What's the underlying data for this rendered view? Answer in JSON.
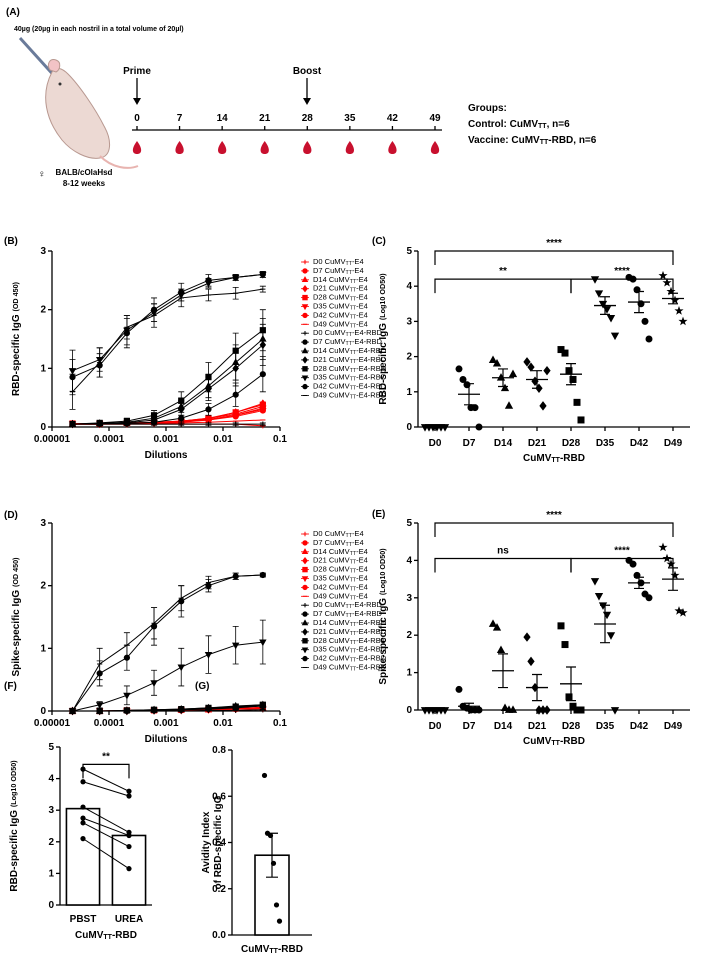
{
  "schematic": {
    "panel": "(A)",
    "dose": "40µg (20µg in each nostril in a total volume of 20µl)",
    "prime": "Prime",
    "boost": "Boost",
    "days": [
      0,
      7,
      14,
      21,
      28,
      35,
      42,
      49
    ],
    "groups_title": "Groups:",
    "groups": [
      "Control: CuMVTT, n=6",
      "Vaccine: CuMVTT-RBD, n=6"
    ],
    "sex": "♀",
    "strain": "BALB/cOlaHsd",
    "age": "8-12 weeks"
  },
  "chart_data": [
    {
      "type": "line",
      "panel": "(B)",
      "ylabel": "RBD-specific IgG (OD 450)",
      "xlabel": "Dilutions",
      "xscale": "log",
      "xlim": [
        1e-05,
        0.1
      ],
      "xticks": [
        1e-05,
        0.0001,
        0.001,
        0.01,
        0.1
      ],
      "ylim": [
        0,
        3
      ],
      "yticks": [
        0,
        1,
        2,
        3
      ],
      "legend": "right",
      "x": [
        2.29e-05,
        6.86e-05,
        0.000206,
        0.000617,
        0.00185,
        0.00556,
        0.0167,
        0.05
      ],
      "series": [
        {
          "name": "D0 CuMVTT-E4",
          "color": "#ff0000",
          "marker": "plus",
          "values": [
            0.05,
            0.05,
            0.05,
            0.05,
            0.05,
            0.05,
            0.05,
            0.02
          ]
        },
        {
          "name": "D7 CuMVTT-E4",
          "color": "#ff0000",
          "marker": "circle",
          "values": [
            0.05,
            0.05,
            0.06,
            0.07,
            0.09,
            0.12,
            0.2,
            0.3
          ]
        },
        {
          "name": "D14 CuMVTT-E4",
          "color": "#ff0000",
          "marker": "triangle",
          "values": [
            0.05,
            0.06,
            0.06,
            0.08,
            0.1,
            0.15,
            0.22,
            0.35
          ]
        },
        {
          "name": "D21 CuMVTT-E4",
          "color": "#ff0000",
          "marker": "diamond",
          "values": [
            0.05,
            0.05,
            0.06,
            0.07,
            0.1,
            0.14,
            0.25,
            0.4
          ]
        },
        {
          "name": "D28 CuMVTT-E4",
          "color": "#ff0000",
          "marker": "square",
          "values": [
            0.06,
            0.06,
            0.07,
            0.08,
            0.1,
            0.15,
            0.25,
            0.38
          ]
        },
        {
          "name": "D35 CuMVTT-E4",
          "color": "#ff0000",
          "marker": "triangle-down",
          "values": [
            0.05,
            0.06,
            0.06,
            0.07,
            0.09,
            0.13,
            0.2,
            0.32
          ]
        },
        {
          "name": "D42 CuMVTT-E4",
          "color": "#ff0000",
          "marker": "circle",
          "values": [
            0.05,
            0.05,
            0.06,
            0.07,
            0.08,
            0.12,
            0.18,
            0.28
          ]
        },
        {
          "name": "D49 CuMVTT-E4",
          "color": "#ff0000",
          "marker": "dash",
          "values": [
            0.05,
            0.05,
            0.05,
            0.06,
            0.07,
            0.08,
            0.1,
            0.12
          ]
        },
        {
          "name": "D0 CuMVTT-E4-RBD",
          "color": "#000000",
          "marker": "plus",
          "values": [
            0.05,
            0.05,
            0.05,
            0.05,
            0.05,
            0.05,
            0.05,
            0.05
          ],
          "errors": [
            0.02,
            0.02,
            0.02,
            0.02,
            0.02,
            0.02,
            0.02,
            0.02
          ]
        },
        {
          "name": "D7 CuMVTT-E4-RBD",
          "color": "#000000",
          "marker": "circle",
          "values": [
            0.05,
            0.05,
            0.06,
            0.08,
            0.15,
            0.3,
            0.55,
            0.9
          ],
          "errors": [
            0.02,
            0.02,
            0.03,
            0.03,
            0.05,
            0.1,
            0.2,
            0.3
          ]
        },
        {
          "name": "D14 CuMVTT-E4-RBD",
          "color": "#000000",
          "marker": "triangle",
          "values": [
            0.05,
            0.06,
            0.08,
            0.15,
            0.35,
            0.7,
            1.1,
            1.5
          ],
          "errors": [
            0.02,
            0.03,
            0.03,
            0.05,
            0.1,
            0.2,
            0.3,
            0.35
          ]
        },
        {
          "name": "D21 CuMVTT-E4-RBD",
          "color": "#000000",
          "marker": "diamond",
          "values": [
            0.05,
            0.06,
            0.07,
            0.12,
            0.3,
            0.65,
            1.0,
            1.4
          ],
          "errors": [
            0.02,
            0.03,
            0.03,
            0.05,
            0.1,
            0.2,
            0.3,
            0.35
          ]
        },
        {
          "name": "D28 CuMVTT-E4-RBD",
          "color": "#000000",
          "marker": "square",
          "values": [
            0.05,
            0.07,
            0.1,
            0.2,
            0.45,
            0.85,
            1.3,
            1.65
          ],
          "errors": [
            0.02,
            0.03,
            0.05,
            0.08,
            0.15,
            0.25,
            0.3,
            0.35
          ]
        },
        {
          "name": "D35 CuMVTT-E4-RBD",
          "color": "#000000",
          "marker": "triangle-down",
          "values": [
            0.96,
            1.15,
            1.65,
            1.95,
            2.25,
            2.45,
            2.55,
            2.6
          ],
          "errors": [
            0.35,
            0.2,
            0.25,
            0.15,
            0.1,
            0.08,
            0.05,
            0.05
          ]
        },
        {
          "name": "D42 CuMVTT-E4-RBD",
          "color": "#000000",
          "marker": "circle",
          "values": [
            0.85,
            1.05,
            1.6,
            2.0,
            2.3,
            2.5,
            2.55,
            2.6
          ],
          "errors": [
            0.3,
            0.2,
            0.25,
            0.2,
            0.15,
            0.1,
            0.05,
            0.05
          ]
        },
        {
          "name": "D49 CuMVTT-E4-RBD",
          "color": "#000000",
          "marker": "dash",
          "values": [
            0.6,
            1.1,
            1.7,
            1.9,
            2.2,
            2.25,
            2.28,
            2.35
          ],
          "errors": [
            0.3,
            0.25,
            0.2,
            0.2,
            0.15,
            0.1,
            0.1,
            0.05
          ]
        }
      ]
    },
    {
      "type": "dot",
      "panel": "(C)",
      "ylabel": "RBD-specific IgG (Log10 OD50)",
      "xlabel": "CuMVTT-RBD",
      "ylim": [
        0,
        5
      ],
      "yticks": [
        0,
        1,
        2,
        3,
        4,
        5
      ],
      "categories": [
        "D0",
        "D7",
        "D14",
        "D21",
        "D28",
        "D35",
        "D42",
        "D49"
      ],
      "markers": [
        "triangle-down",
        "circle",
        "triangle",
        "diamond",
        "square",
        "triangle-down",
        "circle",
        "star"
      ],
      "points": [
        [
          0,
          0,
          0,
          0,
          0,
          0
        ],
        [
          1.65,
          1.35,
          1.2,
          0.55,
          0.55,
          0
        ],
        [
          1.9,
          1.8,
          1.4,
          1.1,
          0.6,
          1.5
        ],
        [
          1.85,
          1.7,
          1.3,
          1.1,
          0.6,
          1.6
        ],
        [
          2.2,
          2.1,
          1.6,
          1.35,
          0.7,
          0.2
        ],
        [
          4.2,
          3.8,
          3.5,
          3.35,
          3.1,
          2.6
        ],
        [
          4.25,
          4.2,
          3.9,
          3.5,
          3.0,
          2.5
        ],
        [
          4.3,
          4.1,
          3.85,
          3.6,
          3.3,
          3.0
        ]
      ],
      "means": [
        0,
        0.93,
        1.4,
        1.35,
        1.5,
        3.45,
        3.55,
        3.65
      ],
      "sems": [
        0,
        0.3,
        0.25,
        0.25,
        0.3,
        0.25,
        0.3,
        0.15
      ],
      "brackets": [
        {
          "from": "D0",
          "to": "D49",
          "y": 5.0,
          "label": "****"
        },
        {
          "from": "D0",
          "to": "D28",
          "y": 4.2,
          "label": "**"
        },
        {
          "from": "D28",
          "to": "D49",
          "y": 4.2,
          "label": "****"
        }
      ]
    },
    {
      "type": "line",
      "panel": "(D)",
      "ylabel": "Spike-specific IgG (OD 450)",
      "xlabel": "Dilutions",
      "xscale": "log",
      "xlim": [
        1e-05,
        0.1
      ],
      "xticks": [
        1e-05,
        0.0001,
        0.001,
        0.01,
        0.1
      ],
      "ylim": [
        0,
        3
      ],
      "yticks": [
        0,
        1,
        2,
        3
      ],
      "legend": "right",
      "x": [
        2.29e-05,
        6.86e-05,
        0.000206,
        0.000617,
        0.00185,
        0.00556,
        0.0167,
        0.05
      ],
      "series": [
        {
          "name": "D0 CuMVTT-E4",
          "color": "#ff0000",
          "marker": "plus",
          "values": [
            0,
            0,
            0,
            0,
            0.01,
            0.02,
            0.03,
            0.04
          ]
        },
        {
          "name": "D7 CuMVTT-E4",
          "color": "#ff0000",
          "marker": "circle",
          "values": [
            0,
            0,
            0,
            0.01,
            0.01,
            0.02,
            0.03,
            0.05
          ]
        },
        {
          "name": "D14 CuMVTT-E4",
          "color": "#ff0000",
          "marker": "triangle",
          "values": [
            0,
            0,
            0.01,
            0.01,
            0.02,
            0.02,
            0.04,
            0.05
          ]
        },
        {
          "name": "D21 CuMVTT-E4",
          "color": "#ff0000",
          "marker": "diamond",
          "values": [
            0,
            0,
            0,
            0.01,
            0.02,
            0.03,
            0.04,
            0.05
          ]
        },
        {
          "name": "D28 CuMVTT-E4",
          "color": "#ff0000",
          "marker": "square",
          "values": [
            0,
            0,
            0.01,
            0.01,
            0.02,
            0.03,
            0.04,
            0.06
          ]
        },
        {
          "name": "D35 CuMVTT-E4",
          "color": "#ff0000",
          "marker": "triangle-down",
          "values": [
            0,
            0,
            0,
            0.01,
            0.01,
            0.02,
            0.03,
            0.04
          ]
        },
        {
          "name": "D42 CuMVTT-E4",
          "color": "#ff0000",
          "marker": "circle",
          "values": [
            0,
            0,
            0,
            0.01,
            0.02,
            0.02,
            0.03,
            0.05
          ]
        },
        {
          "name": "D49 CuMVTT-E4",
          "color": "#ff0000",
          "marker": "dash",
          "values": [
            0,
            0,
            0,
            0,
            0.01,
            0.02,
            0.03,
            0.04
          ]
        },
        {
          "name": "D0 CuMVTT-E4-RBD",
          "color": "#000000",
          "marker": "plus",
          "values": [
            0,
            0,
            0,
            0,
            0,
            0.01,
            0.01,
            0.02
          ],
          "errors": [
            0.01,
            0.01,
            0.01,
            0.01,
            0.01,
            0.01,
            0.01,
            0.01
          ]
        },
        {
          "name": "D7 CuMVTT-E4-RBD",
          "color": "#000000",
          "marker": "circle",
          "values": [
            0,
            0,
            0,
            0.01,
            0.02,
            0.03,
            0.05,
            0.08
          ],
          "errors": [
            0.01,
            0.01,
            0.01,
            0.01,
            0.01,
            0.02,
            0.02,
            0.03
          ]
        },
        {
          "name": "D14 CuMVTT-E4-RBD",
          "color": "#000000",
          "marker": "triangle",
          "values": [
            0,
            0,
            0.01,
            0.02,
            0.03,
            0.05,
            0.08,
            0.1
          ],
          "errors": [
            0.01,
            0.01,
            0.01,
            0.01,
            0.02,
            0.02,
            0.03,
            0.03
          ]
        },
        {
          "name": "D21 CuMVTT-E4-RBD",
          "color": "#000000",
          "marker": "diamond",
          "values": [
            0,
            0,
            0,
            0.01,
            0.02,
            0.04,
            0.06,
            0.09
          ],
          "errors": [
            0.01,
            0.01,
            0.01,
            0.01,
            0.01,
            0.02,
            0.02,
            0.03
          ]
        },
        {
          "name": "D28 CuMVTT-E4-RBD",
          "color": "#000000",
          "marker": "square",
          "values": [
            0,
            0,
            0.01,
            0.02,
            0.03,
            0.05,
            0.07,
            0.1
          ],
          "errors": [
            0.01,
            0.01,
            0.01,
            0.01,
            0.02,
            0.02,
            0.03,
            0.03
          ]
        },
        {
          "name": "D35 CuMVTT-E4-RBD",
          "color": "#000000",
          "marker": "triangle-down",
          "values": [
            0,
            0.1,
            0.25,
            0.45,
            0.7,
            0.9,
            1.05,
            1.1
          ],
          "errors": [
            0.02,
            0.05,
            0.15,
            0.2,
            0.3,
            0.3,
            0.3,
            0.35
          ]
        },
        {
          "name": "D42 CuMVTT-E4-RBD",
          "color": "#000000",
          "marker": "circle",
          "values": [
            0,
            0.6,
            0.85,
            1.35,
            1.75,
            2.0,
            2.15,
            2.17
          ],
          "errors": [
            0.02,
            0.2,
            0.2,
            0.3,
            0.25,
            0.1,
            0.05,
            0.03
          ]
        },
        {
          "name": "D49 CuMVTT-E4-RBD",
          "color": "#000000",
          "marker": "dash",
          "values": [
            0,
            0.75,
            1.05,
            1.4,
            1.8,
            2.05,
            2.15,
            2.17
          ],
          "errors": [
            0.02,
            0.25,
            0.2,
            0.25,
            0.2,
            0.1,
            0.05,
            0.03
          ]
        }
      ]
    },
    {
      "type": "dot",
      "panel": "(E)",
      "ylabel": "Spike-specific IgG (Log10 OD50)",
      "xlabel": "CuMVTT-RBD",
      "ylim": [
        0,
        5
      ],
      "yticks": [
        0,
        1,
        2,
        3,
        4,
        5
      ],
      "categories": [
        "D0",
        "D7",
        "D14",
        "D21",
        "D28",
        "D35",
        "D42",
        "D49"
      ],
      "markers": [
        "triangle-down",
        "circle",
        "triangle",
        "diamond",
        "square",
        "triangle-down",
        "circle",
        "star"
      ],
      "points": [
        [
          0,
          0,
          0,
          0,
          0,
          0
        ],
        [
          0.55,
          0.1,
          0.05,
          0,
          0,
          0
        ],
        [
          2.3,
          2.2,
          1.6,
          0.05,
          0,
          0
        ],
        [
          1.95,
          1.3,
          0.6,
          0,
          0,
          0
        ],
        [
          2.25,
          1.75,
          0.35,
          0.1,
          0,
          0
        ],
        [
          3.45,
          3.05,
          2.8,
          2.55,
          2.0,
          0
        ],
        [
          4.0,
          3.9,
          3.6,
          3.4,
          3.1,
          3.0
        ],
        [
          4.35,
          4.05,
          3.9,
          3.6,
          2.65,
          2.6
        ]
      ],
      "means": [
        0,
        0.1,
        1.05,
        0.6,
        0.7,
        2.3,
        3.4,
        3.5
      ],
      "sems": [
        0,
        0.08,
        0.45,
        0.35,
        0.45,
        0.5,
        0.15,
        0.3
      ],
      "brackets": [
        {
          "from": "D0",
          "to": "D49",
          "y": 5.0,
          "label": "****"
        },
        {
          "from": "D0",
          "to": "D28",
          "y": 4.05,
          "label": "ns"
        },
        {
          "from": "D28",
          "to": "D49",
          "y": 4.05,
          "label": "****"
        }
      ]
    },
    {
      "type": "bar",
      "panel": "(F)",
      "ylabel": "RBD-specific IgG (Log10 OD50)",
      "xlabel": "CuMVTT-RBD",
      "ylim": [
        0,
        5
      ],
      "yticks": [
        0,
        1,
        2,
        3,
        4,
        5
      ],
      "categories": [
        "PBST",
        "UREA"
      ],
      "values": [
        3.05,
        2.2
      ],
      "paired": true,
      "points": [
        [
          4.3,
          3.9,
          3.1,
          2.75,
          2.6,
          2.1
        ],
        [
          3.6,
          3.45,
          2.3,
          2.2,
          1.85,
          1.15
        ]
      ],
      "brackets": [
        {
          "from": "PBST",
          "to": "UREA",
          "y": 4.45,
          "label": "**"
        }
      ]
    },
    {
      "type": "bar",
      "panel": "(G)",
      "ylabel": [
        "Avidity Index",
        "of RBD-specific IgG"
      ],
      "ylim": [
        0,
        0.8
      ],
      "yticks": [
        {
          "value": 0,
          "label": "0.0"
        },
        0.2,
        0.4,
        0.6,
        0.8
      ],
      "categories": [
        "CuMVTT-RBD"
      ],
      "values": [
        0.345
      ],
      "errors": [
        0.095
      ],
      "points": [
        [
          0.69,
          0.44,
          0.43,
          0.31,
          0.13,
          0.06
        ]
      ]
    }
  ]
}
